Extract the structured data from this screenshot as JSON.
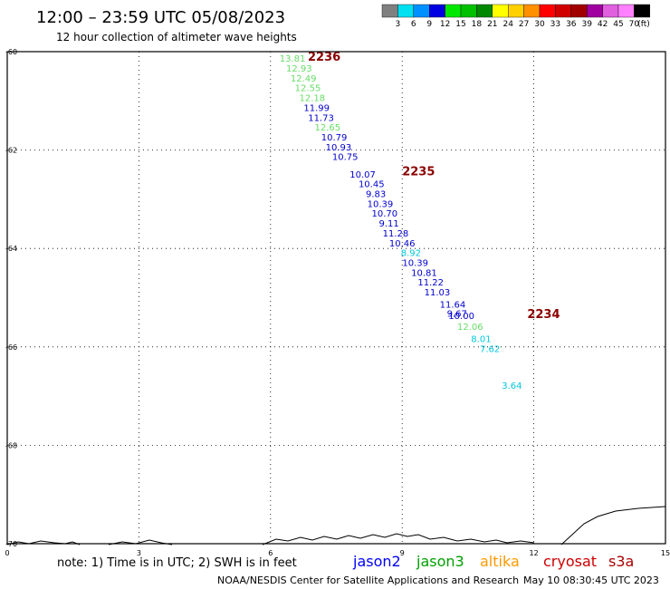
{
  "header": {
    "title": "12:00 – 23:59 UTC 05/08/2023",
    "subtitle": "12 hour collection of altimeter wave heights"
  },
  "legend": {
    "unit": "(ft)",
    "bins": [
      {
        "label": "3",
        "color": "#808080"
      },
      {
        "label": "6",
        "color": "#00e0f0"
      },
      {
        "label": "9",
        "color": "#0090ff"
      },
      {
        "label": "12",
        "color": "#0000e0"
      },
      {
        "label": "15",
        "color": "#00e800"
      },
      {
        "label": "18",
        "color": "#00c000"
      },
      {
        "label": "21",
        "color": "#008800"
      },
      {
        "label": "24",
        "color": "#ffff00"
      },
      {
        "label": "27",
        "color": "#ffd000"
      },
      {
        "label": "30",
        "color": "#ff9000"
      },
      {
        "label": "33",
        "color": "#ff0000"
      },
      {
        "label": "36",
        "color": "#d00000"
      },
      {
        "label": "39",
        "color": "#a00000"
      },
      {
        "label": "42",
        "color": "#a000a0"
      },
      {
        "label": "45",
        "color": "#e060e0"
      },
      {
        "label": "70",
        "color": "#ff80ff"
      },
      {
        "label": "",
        "color": "#000000"
      }
    ]
  },
  "colors": {
    "lightgreen": "#66dd66",
    "blue": "#0000cc",
    "cyan": "#00c8e0",
    "timelabel": "#8b0000",
    "coast": "#000000",
    "jason2": "#0000ff",
    "jason3": "#00a000",
    "altika": "#ff9900",
    "cryosat": "#cc0000",
    "s3a": "#aa0000"
  },
  "chart_data": {
    "type": "scatter",
    "title": "12:00 – 23:59 UTC 05/08/2023",
    "subtitle": "12 hour collection of altimeter wave heights",
    "xlabel": "",
    "ylabel": "",
    "xlim": [
      0,
      15
    ],
    "ylim": [
      -70,
      -60
    ],
    "grid": true,
    "x_ticks": [
      {
        "value": 0,
        "label": "0"
      },
      {
        "value": 3,
        "label": "3"
      },
      {
        "value": 6,
        "label": "6"
      },
      {
        "value": 9,
        "label": "9"
      },
      {
        "value": 12,
        "label": "12"
      },
      {
        "value": 15,
        "label": "15"
      }
    ],
    "y_ticks": [
      {
        "value": -60,
        "label": "-60"
      },
      {
        "value": -62,
        "label": "-62"
      },
      {
        "value": -64,
        "label": "-64"
      },
      {
        "value": -66,
        "label": "-66"
      },
      {
        "value": -68,
        "label": "-68"
      },
      {
        "value": -70,
        "label": "-70"
      }
    ],
    "points": [
      {
        "x": 6.5,
        "y": -60.15,
        "label": "13.81",
        "color": "lightgreen"
      },
      {
        "x": 6.65,
        "y": -60.35,
        "label": "12.93",
        "color": "lightgreen"
      },
      {
        "x": 6.75,
        "y": -60.55,
        "label": "12.49",
        "color": "lightgreen"
      },
      {
        "x": 6.85,
        "y": -60.75,
        "label": "12.55",
        "color": "lightgreen"
      },
      {
        "x": 6.95,
        "y": -60.95,
        "label": "12.18",
        "color": "lightgreen"
      },
      {
        "x": 7.05,
        "y": -61.15,
        "label": "11.99",
        "color": "blue"
      },
      {
        "x": 7.15,
        "y": -61.35,
        "label": "11.73",
        "color": "blue"
      },
      {
        "x": 7.3,
        "y": -61.55,
        "label": "12.65",
        "color": "lightgreen"
      },
      {
        "x": 7.45,
        "y": -61.75,
        "label": "10.79",
        "color": "blue"
      },
      {
        "x": 7.55,
        "y": -61.95,
        "label": "10.93",
        "color": "blue"
      },
      {
        "x": 7.7,
        "y": -62.15,
        "label": "10.75",
        "color": "blue"
      },
      {
        "x": 8.1,
        "y": -62.5,
        "label": "10.07",
        "color": "blue"
      },
      {
        "x": 8.3,
        "y": -62.7,
        "label": "10.45",
        "color": "blue"
      },
      {
        "x": 8.4,
        "y": -62.9,
        "label": "9.83",
        "color": "blue"
      },
      {
        "x": 8.5,
        "y": -63.1,
        "label": "10.39",
        "color": "blue"
      },
      {
        "x": 8.6,
        "y": -63.3,
        "label": "10.70",
        "color": "blue"
      },
      {
        "x": 8.7,
        "y": -63.5,
        "label": "9.11",
        "color": "blue"
      },
      {
        "x": 8.85,
        "y": -63.7,
        "label": "11.28",
        "color": "blue"
      },
      {
        "x": 9.0,
        "y": -63.9,
        "label": "10.46",
        "color": "blue"
      },
      {
        "x": 9.2,
        "y": -64.1,
        "label": "8.92",
        "color": "cyan"
      },
      {
        "x": 9.3,
        "y": -64.3,
        "label": "10.39",
        "color": "blue"
      },
      {
        "x": 9.5,
        "y": -64.5,
        "label": "10.81",
        "color": "blue"
      },
      {
        "x": 9.65,
        "y": -64.7,
        "label": "11.22",
        "color": "blue"
      },
      {
        "x": 9.8,
        "y": -64.9,
        "label": "11.03",
        "color": "blue"
      },
      {
        "x": 10.15,
        "y": -65.15,
        "label": "11.64",
        "color": "blue"
      },
      {
        "x": 10.25,
        "y": -65.33,
        "label": "9.67",
        "color": "blue"
      },
      {
        "x": 10.35,
        "y": -65.38,
        "label": "10.00",
        "color": "blue"
      },
      {
        "x": 10.55,
        "y": -65.6,
        "label": "12.06",
        "color": "lightgreen"
      },
      {
        "x": 10.8,
        "y": -65.85,
        "label": "8.01",
        "color": "cyan"
      },
      {
        "x": 11.0,
        "y": -66.05,
        "label": "7.62",
        "color": "cyan"
      },
      {
        "x": 11.5,
        "y": -66.8,
        "label": "3.64",
        "color": "cyan"
      }
    ],
    "time_labels": [
      {
        "x": 6.85,
        "y": -60.12,
        "label": "2236"
      },
      {
        "x": 9.0,
        "y": -62.45,
        "label": "2235"
      },
      {
        "x": 11.85,
        "y": -65.35,
        "label": "2234"
      }
    ]
  },
  "footer": {
    "note": "note:  1) Time is in UTC; 2) SWH is in feet",
    "satellites": [
      {
        "name": "jason2",
        "color": "jason2"
      },
      {
        "name": "jason3",
        "color": "jason3"
      },
      {
        "name": "altika",
        "color": "altika"
      },
      {
        "name": "cryosat",
        "color": "cryosat"
      },
      {
        "name": "s3a",
        "color": "s3a"
      }
    ],
    "credit": "NOAA/NESDIS Center for Satellite Applications and Research",
    "timestamp": "May 10 08:30:45 UTC 2023"
  }
}
